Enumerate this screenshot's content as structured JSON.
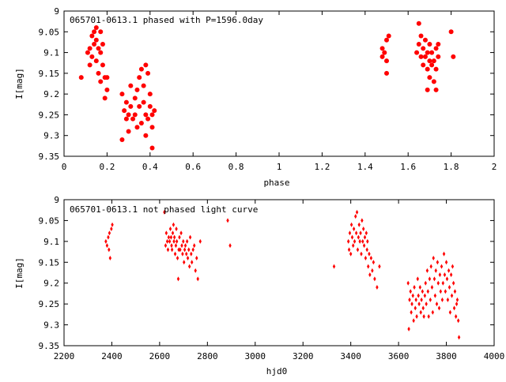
{
  "chart_data": [
    {
      "type": "scatter",
      "title": "065701-0613.1 phased with P=1596.0day",
      "xlabel": "phase",
      "ylabel": "I[mag]",
      "xlim": [
        0,
        2
      ],
      "ylim": [
        9.35,
        9
      ],
      "y_inverted": true,
      "grid": false,
      "color": "#ff0000",
      "marker": "filled-circle",
      "xticks": [
        "0",
        "0.2",
        "0.4",
        "0.6",
        "0.8",
        "1",
        "1.2",
        "1.4",
        "1.6",
        "1.8",
        "2"
      ],
      "yticks": [
        "9",
        "9.05",
        "9.1",
        "9.15",
        "9.2",
        "9.25",
        "9.3",
        "9.35"
      ],
      "points": [
        [
          0.08,
          9.16
        ],
        [
          0.11,
          9.1
        ],
        [
          0.12,
          9.13
        ],
        [
          0.12,
          9.09
        ],
        [
          0.13,
          9.06
        ],
        [
          0.13,
          9.11
        ],
        [
          0.14,
          9.05
        ],
        [
          0.14,
          9.08
        ],
        [
          0.15,
          9.04
        ],
        [
          0.15,
          9.12
        ],
        [
          0.15,
          9.07
        ],
        [
          0.16,
          9.09
        ],
        [
          0.16,
          9.15
        ],
        [
          0.17,
          9.05
        ],
        [
          0.17,
          9.1
        ],
        [
          0.17,
          9.17
        ],
        [
          0.18,
          9.08
        ],
        [
          0.18,
          9.13
        ],
        [
          0.19,
          9.16
        ],
        [
          0.19,
          9.21
        ],
        [
          0.2,
          9.19
        ],
        [
          0.2,
          9.16
        ],
        [
          0.27,
          9.2
        ],
        [
          0.27,
          9.31
        ],
        [
          0.28,
          9.24
        ],
        [
          0.29,
          9.22
        ],
        [
          0.29,
          9.26
        ],
        [
          0.3,
          9.25
        ],
        [
          0.3,
          9.29
        ],
        [
          0.31,
          9.23
        ],
        [
          0.31,
          9.18
        ],
        [
          0.32,
          9.26
        ],
        [
          0.33,
          9.21
        ],
        [
          0.33,
          9.25
        ],
        [
          0.34,
          9.19
        ],
        [
          0.34,
          9.28
        ],
        [
          0.35,
          9.16
        ],
        [
          0.35,
          9.23
        ],
        [
          0.36,
          9.14
        ],
        [
          0.36,
          9.27
        ],
        [
          0.37,
          9.18
        ],
        [
          0.37,
          9.22
        ],
        [
          0.38,
          9.13
        ],
        [
          0.38,
          9.25
        ],
        [
          0.38,
          9.3
        ],
        [
          0.39,
          9.15
        ],
        [
          0.39,
          9.26
        ],
        [
          0.4,
          9.2
        ],
        [
          0.4,
          9.23
        ],
        [
          0.41,
          9.28
        ],
        [
          0.41,
          9.25
        ],
        [
          0.41,
          9.33
        ],
        [
          0.42,
          9.24
        ],
        [
          1.48,
          9.09
        ],
        [
          1.48,
          9.11
        ],
        [
          1.49,
          9.1
        ],
        [
          1.5,
          9.07
        ],
        [
          1.5,
          9.12
        ],
        [
          1.5,
          9.15
        ],
        [
          1.51,
          9.06
        ],
        [
          1.64,
          9.1
        ],
        [
          1.65,
          9.03
        ],
        [
          1.65,
          9.08
        ],
        [
          1.66,
          9.06
        ],
        [
          1.66,
          9.11
        ],
        [
          1.67,
          9.09
        ],
        [
          1.67,
          9.13
        ],
        [
          1.68,
          9.07
        ],
        [
          1.68,
          9.11
        ],
        [
          1.69,
          9.1
        ],
        [
          1.69,
          9.14
        ],
        [
          1.69,
          9.19
        ],
        [
          1.7,
          9.08
        ],
        [
          1.7,
          9.12
        ],
        [
          1.7,
          9.16
        ],
        [
          1.71,
          9.1
        ],
        [
          1.71,
          9.13
        ],
        [
          1.72,
          9.12
        ],
        [
          1.72,
          9.17
        ],
        [
          1.73,
          9.09
        ],
        [
          1.73,
          9.14
        ],
        [
          1.73,
          9.19
        ],
        [
          1.74,
          9.11
        ],
        [
          1.74,
          9.08
        ],
        [
          1.8,
          9.05
        ],
        [
          1.81,
          9.11
        ]
      ]
    },
    {
      "type": "scatter",
      "title": "065701-0613.1 not phased light curve",
      "xlabel": "hjd0",
      "ylabel": "I[mag]",
      "xlim": [
        2200,
        4000
      ],
      "ylim": [
        9.35,
        9
      ],
      "y_inverted": true,
      "grid": false,
      "color": "#ff0000",
      "marker": "small-diamond",
      "xticks": [
        "2200",
        "2400",
        "2600",
        "2800",
        "3000",
        "3200",
        "3400",
        "3600",
        "3800",
        "4000"
      ],
      "yticks": [
        "9",
        "9.05",
        "9.1",
        "9.15",
        "9.2",
        "9.25",
        "9.3",
        "9.35"
      ],
      "points": [
        [
          2375,
          9.1
        ],
        [
          2380,
          9.11
        ],
        [
          2385,
          9.09
        ],
        [
          2388,
          9.12
        ],
        [
          2390,
          9.08
        ],
        [
          2393,
          9.14
        ],
        [
          2398,
          9.07
        ],
        [
          2402,
          9.06
        ],
        [
          2620,
          9.03
        ],
        [
          2625,
          9.11
        ],
        [
          2628,
          9.08
        ],
        [
          2632,
          9.1
        ],
        [
          2635,
          9.12
        ],
        [
          2638,
          9.09
        ],
        [
          2642,
          9.1
        ],
        [
          2645,
          9.07
        ],
        [
          2648,
          9.09
        ],
        [
          2650,
          9.11
        ],
        [
          2652,
          9.12
        ],
        [
          2655,
          9.08
        ],
        [
          2658,
          9.06
        ],
        [
          2660,
          9.1
        ],
        [
          2662,
          9.09
        ],
        [
          2665,
          9.13
        ],
        [
          2668,
          9.11
        ],
        [
          2670,
          9.07
        ],
        [
          2672,
          9.1
        ],
        [
          2675,
          9.14
        ],
        [
          2678,
          9.19
        ],
        [
          2680,
          9.12
        ],
        [
          2683,
          9.09
        ],
        [
          2686,
          9.12
        ],
        [
          2690,
          9.08
        ],
        [
          2693,
          9.11
        ],
        [
          2696,
          9.13
        ],
        [
          2699,
          9.1
        ],
        [
          2702,
          9.15
        ],
        [
          2705,
          9.12
        ],
        [
          2708,
          9.11
        ],
        [
          2712,
          9.13
        ],
        [
          2715,
          9.1
        ],
        [
          2718,
          9.14
        ],
        [
          2722,
          9.12
        ],
        [
          2725,
          9.16
        ],
        [
          2728,
          9.09
        ],
        [
          2732,
          9.13
        ],
        [
          2735,
          9.15
        ],
        [
          2740,
          9.12
        ],
        [
          2745,
          9.11
        ],
        [
          2750,
          9.17
        ],
        [
          2755,
          9.14
        ],
        [
          2760,
          9.19
        ],
        [
          2770,
          9.1
        ],
        [
          2885,
          9.05
        ],
        [
          2895,
          9.11
        ],
        [
          3330,
          9.16
        ],
        [
          3390,
          9.1
        ],
        [
          3393,
          9.12
        ],
        [
          3396,
          9.08
        ],
        [
          3400,
          9.13
        ],
        [
          3403,
          9.06
        ],
        [
          3406,
          9.09
        ],
        [
          3410,
          9.11
        ],
        [
          3413,
          9.07
        ],
        [
          3416,
          9.1
        ],
        [
          3420,
          9.04
        ],
        [
          3423,
          9.08
        ],
        [
          3426,
          9.03
        ],
        [
          3429,
          9.12
        ],
        [
          3432,
          9.09
        ],
        [
          3435,
          9.06
        ],
        [
          3438,
          9.1
        ],
        [
          3441,
          9.08
        ],
        [
          3444,
          9.13
        ],
        [
          3447,
          9.05
        ],
        [
          3450,
          9.1
        ],
        [
          3453,
          9.07
        ],
        [
          3456,
          9.11
        ],
        [
          3459,
          9.09
        ],
        [
          3462,
          9.14
        ],
        [
          3465,
          9.08
        ],
        [
          3468,
          9.12
        ],
        [
          3470,
          9.1
        ],
        [
          3473,
          9.16
        ],
        [
          3477,
          9.13
        ],
        [
          3480,
          9.18
        ],
        [
          3485,
          9.14
        ],
        [
          3490,
          9.17
        ],
        [
          3495,
          9.15
        ],
        [
          3500,
          9.19
        ],
        [
          3510,
          9.21
        ],
        [
          3520,
          9.16
        ],
        [
          3640,
          9.2
        ],
        [
          3643,
          9.31
        ],
        [
          3646,
          9.24
        ],
        [
          3650,
          9.22
        ],
        [
          3653,
          9.27
        ],
        [
          3656,
          9.25
        ],
        [
          3660,
          9.23
        ],
        [
          3663,
          9.29
        ],
        [
          3666,
          9.21
        ],
        [
          3670,
          9.26
        ],
        [
          3673,
          9.24
        ],
        [
          3676,
          9.28
        ],
        [
          3680,
          9.19
        ],
        [
          3683,
          9.23
        ],
        [
          3686,
          9.25
        ],
        [
          3690,
          9.21
        ],
        [
          3693,
          9.27
        ],
        [
          3696,
          9.24
        ],
        [
          3700,
          9.22
        ],
        [
          3703,
          9.26
        ],
        [
          3706,
          9.28
        ],
        [
          3710,
          9.23
        ],
        [
          3713,
          9.2
        ],
        [
          3716,
          9.25
        ],
        [
          3720,
          9.17
        ],
        [
          3723,
          9.22
        ],
        [
          3726,
          9.28
        ],
        [
          3730,
          9.19
        ],
        [
          3733,
          9.24
        ],
        [
          3736,
          9.16
        ],
        [
          3740,
          9.21
        ],
        [
          3743,
          9.27
        ],
        [
          3746,
          9.14
        ],
        [
          3750,
          9.19
        ],
        [
          3753,
          9.23
        ],
        [
          3756,
          9.17
        ],
        [
          3760,
          9.25
        ],
        [
          3763,
          9.15
        ],
        [
          3766,
          9.2
        ],
        [
          3770,
          9.26
        ],
        [
          3773,
          9.18
        ],
        [
          3776,
          9.22
        ],
        [
          3780,
          9.16
        ],
        [
          3783,
          9.24
        ],
        [
          3786,
          9.2
        ],
        [
          3790,
          9.13
        ],
        [
          3793,
          9.18
        ],
        [
          3796,
          9.22
        ],
        [
          3800,
          9.15
        ],
        [
          3803,
          9.19
        ],
        [
          3806,
          9.24
        ],
        [
          3810,
          9.17
        ],
        [
          3813,
          9.21
        ],
        [
          3816,
          9.27
        ],
        [
          3820,
          9.18
        ],
        [
          3823,
          9.23
        ],
        [
          3826,
          9.16
        ],
        [
          3830,
          9.2
        ],
        [
          3833,
          9.26
        ],
        [
          3836,
          9.22
        ],
        [
          3840,
          9.28
        ],
        [
          3843,
          9.25
        ],
        [
          3846,
          9.24
        ],
        [
          3850,
          9.29
        ],
        [
          3853,
          9.33
        ]
      ]
    }
  ]
}
